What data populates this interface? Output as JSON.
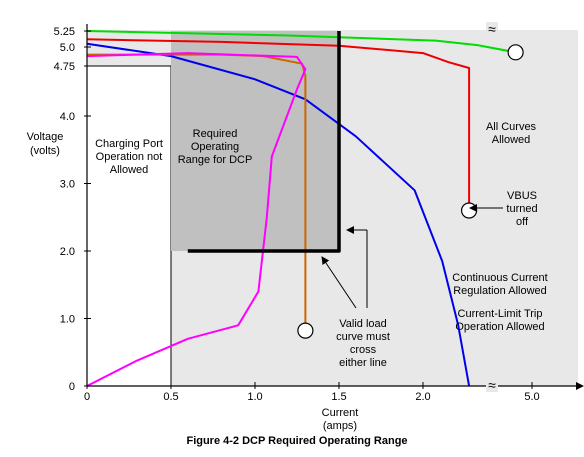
{
  "chart_data": {
    "type": "line",
    "title": "Figure 4-2  DCP Required Operating Range",
    "xlabel": "Current",
    "xunit": "(amps)",
    "ylabel": "Voltage",
    "yunit": "(volts)",
    "x_ticks": [
      "0",
      "0.5",
      "1.0",
      "1.5",
      "2.0",
      "5.0"
    ],
    "y_ticks": [
      "0",
      "1.0",
      "2.0",
      "3.0",
      "4.0",
      "4.75",
      "5.0",
      "5.25"
    ],
    "axis_break_symbol": "≈",
    "xlim": [
      0,
      5.0
    ],
    "ylim": [
      0,
      5.25
    ],
    "colors": {
      "grey_region": "#e8e8e8",
      "required_box": "#c0c0c0",
      "green": "#00dd00",
      "red": "#ee0000",
      "blue": "#0000ee",
      "brown": "#cc6600",
      "magenta": "#ff00ff",
      "black": "#000000"
    },
    "regions": [
      {
        "label": [
          "Charging Port",
          "Operation not",
          "Allowed"
        ],
        "x_range": [
          0,
          0.5
        ],
        "y_range": [
          0,
          4.75
        ]
      },
      {
        "label": [
          "Required",
          "Operating",
          "Range for DCP"
        ],
        "x_range": [
          0.5,
          1.5
        ],
        "y_range": [
          2.0,
          5.25
        ]
      }
    ],
    "series": [
      {
        "color": "green",
        "points": [
          [
            0,
            5.25
          ],
          [
            1.2,
            5.18
          ],
          [
            2.2,
            5.1
          ],
          [
            3.0,
            5.03
          ],
          [
            4.4,
            4.93
          ]
        ]
      },
      {
        "color": "red",
        "points": [
          [
            0,
            5.12
          ],
          [
            0.8,
            5.08
          ],
          [
            1.5,
            5.02
          ],
          [
            2.0,
            4.92
          ],
          [
            2.4,
            4.8
          ],
          [
            2.72,
            4.72
          ],
          [
            2.72,
            2.6
          ]
        ]
      },
      {
        "color": "blue",
        "points": [
          [
            0,
            5.05
          ],
          [
            0.5,
            4.88
          ],
          [
            1.0,
            4.55
          ],
          [
            1.3,
            4.25
          ],
          [
            1.6,
            3.7
          ],
          [
            1.95,
            2.9
          ],
          [
            2.3,
            1.85
          ],
          [
            2.55,
            0.9
          ],
          [
            2.72,
            0
          ]
        ]
      },
      {
        "color": "brown",
        "points": [
          [
            0,
            4.9
          ],
          [
            0.8,
            4.9
          ],
          [
            1.05,
            4.88
          ],
          [
            1.28,
            4.78
          ],
          [
            1.3,
            4.6
          ],
          [
            1.3,
            0.82
          ]
        ]
      },
      {
        "color": "magenta",
        "points": [
          [
            0,
            0
          ],
          [
            0.3,
            0.38
          ],
          [
            0.6,
            0.7
          ],
          [
            0.9,
            0.9
          ],
          [
            1.02,
            1.4
          ],
          [
            1.07,
            2.5
          ],
          [
            1.1,
            3.4
          ],
          [
            1.25,
            4.4
          ],
          [
            1.3,
            4.7
          ],
          [
            1.25,
            4.87
          ],
          [
            0.6,
            4.92
          ],
          [
            0,
            4.88
          ]
        ]
      },
      {
        "color": "black",
        "points": [
          [
            0.6,
            2.0
          ],
          [
            1.5,
            2.0
          ],
          [
            1.5,
            5.25
          ]
        ]
      }
    ],
    "markers": [
      {
        "x": 4.4,
        "y": 4.93,
        "label": []
      },
      {
        "x": 2.72,
        "y": 2.6,
        "label": [
          "VBUS",
          "turned",
          "off"
        ]
      },
      {
        "x": 1.3,
        "y": 0.82,
        "label": [
          "Valid load",
          "curve must",
          "cross",
          "either line"
        ]
      }
    ],
    "annotations": [
      {
        "lines": [
          "All Curves",
          "Allowed"
        ]
      },
      {
        "lines": [
          "Continuous Current",
          "Regulation Allowed"
        ]
      },
      {
        "lines": [
          "Current-Limit Trip",
          "Operation Allowed"
        ]
      }
    ]
  }
}
